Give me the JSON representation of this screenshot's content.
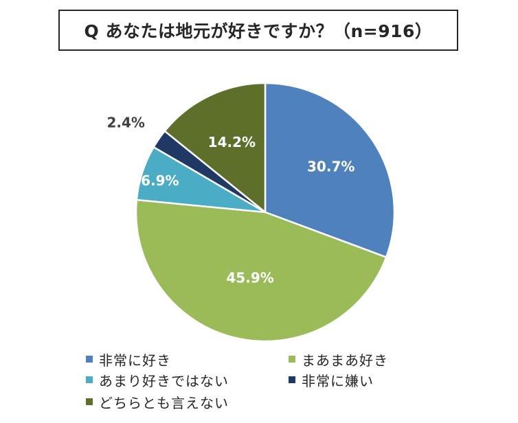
{
  "chart_data": {
    "type": "pie",
    "title": "Q あなたは地元が好きですか？（n=916）",
    "categories": [
      "非常に好き",
      "まあまあ好き",
      "あまり好きではない",
      "非常に嫌い",
      "どちらとも言えない"
    ],
    "values": [
      30.7,
      45.9,
      6.9,
      2.4,
      14.2
    ],
    "data_labels": [
      "30.7%",
      "45.9%",
      "6.9%",
      "2.4%",
      "14.2%"
    ],
    "colors": [
      "#4f81bd",
      "#9bbb59",
      "#4bacc6",
      "#1f3864",
      "#5e6f2c"
    ],
    "label_colors": [
      "#ffffff",
      "#ffffff",
      "#ffffff",
      "#404040",
      "#ffffff"
    ],
    "start_angle": "12 o'clock, clockwise",
    "legend_position": "bottom"
  }
}
